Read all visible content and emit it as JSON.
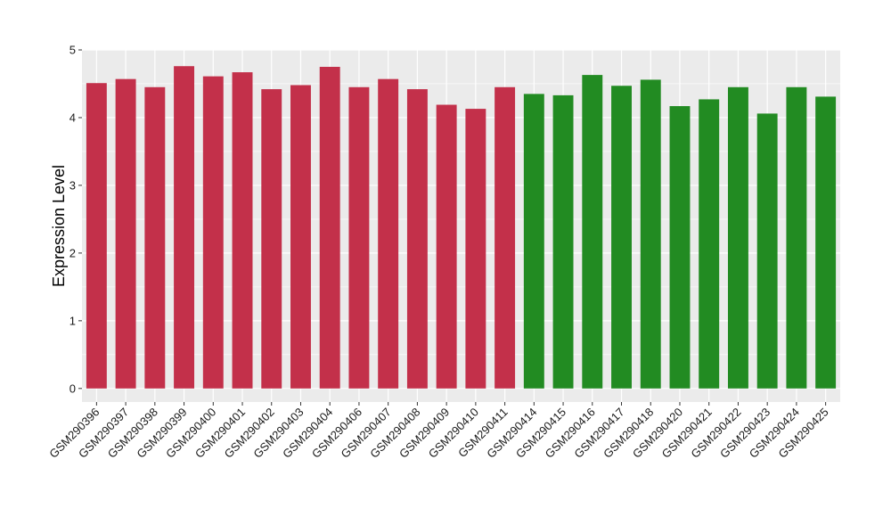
{
  "chart_data": {
    "type": "bar",
    "ylabel": "Expression Level",
    "xlabel": "",
    "ylim": [
      -0.2,
      5.0
    ],
    "yticks": [
      0,
      1,
      2,
      3,
      4,
      5
    ],
    "grid": true,
    "legend": "none",
    "colors": {
      "group1": "#c3304a",
      "group2": "#228b22",
      "panel": "#ebebeb",
      "grid": "#ffffff"
    },
    "categories": [
      "GSM290396",
      "GSM290397",
      "GSM290398",
      "GSM290399",
      "GSM290400",
      "GSM290401",
      "GSM290402",
      "GSM290403",
      "GSM290404",
      "GSM290406",
      "GSM290407",
      "GSM290408",
      "GSM290409",
      "GSM290410",
      "GSM290411",
      "GSM290414",
      "GSM290415",
      "GSM290416",
      "GSM290417",
      "GSM290418",
      "GSM290420",
      "GSM290421",
      "GSM290422",
      "GSM290423",
      "GSM290424",
      "GSM290425"
    ],
    "values": [
      4.51,
      4.57,
      4.45,
      4.76,
      4.61,
      4.67,
      4.42,
      4.48,
      4.75,
      4.45,
      4.57,
      4.42,
      4.19,
      4.13,
      4.45,
      4.35,
      4.33,
      4.63,
      4.47,
      4.56,
      4.17,
      4.27,
      4.45,
      4.06,
      4.45,
      4.31
    ],
    "groups": [
      1,
      1,
      1,
      1,
      1,
      1,
      1,
      1,
      1,
      1,
      1,
      1,
      1,
      1,
      1,
      2,
      2,
      2,
      2,
      2,
      2,
      2,
      2,
      2,
      2,
      2
    ]
  }
}
